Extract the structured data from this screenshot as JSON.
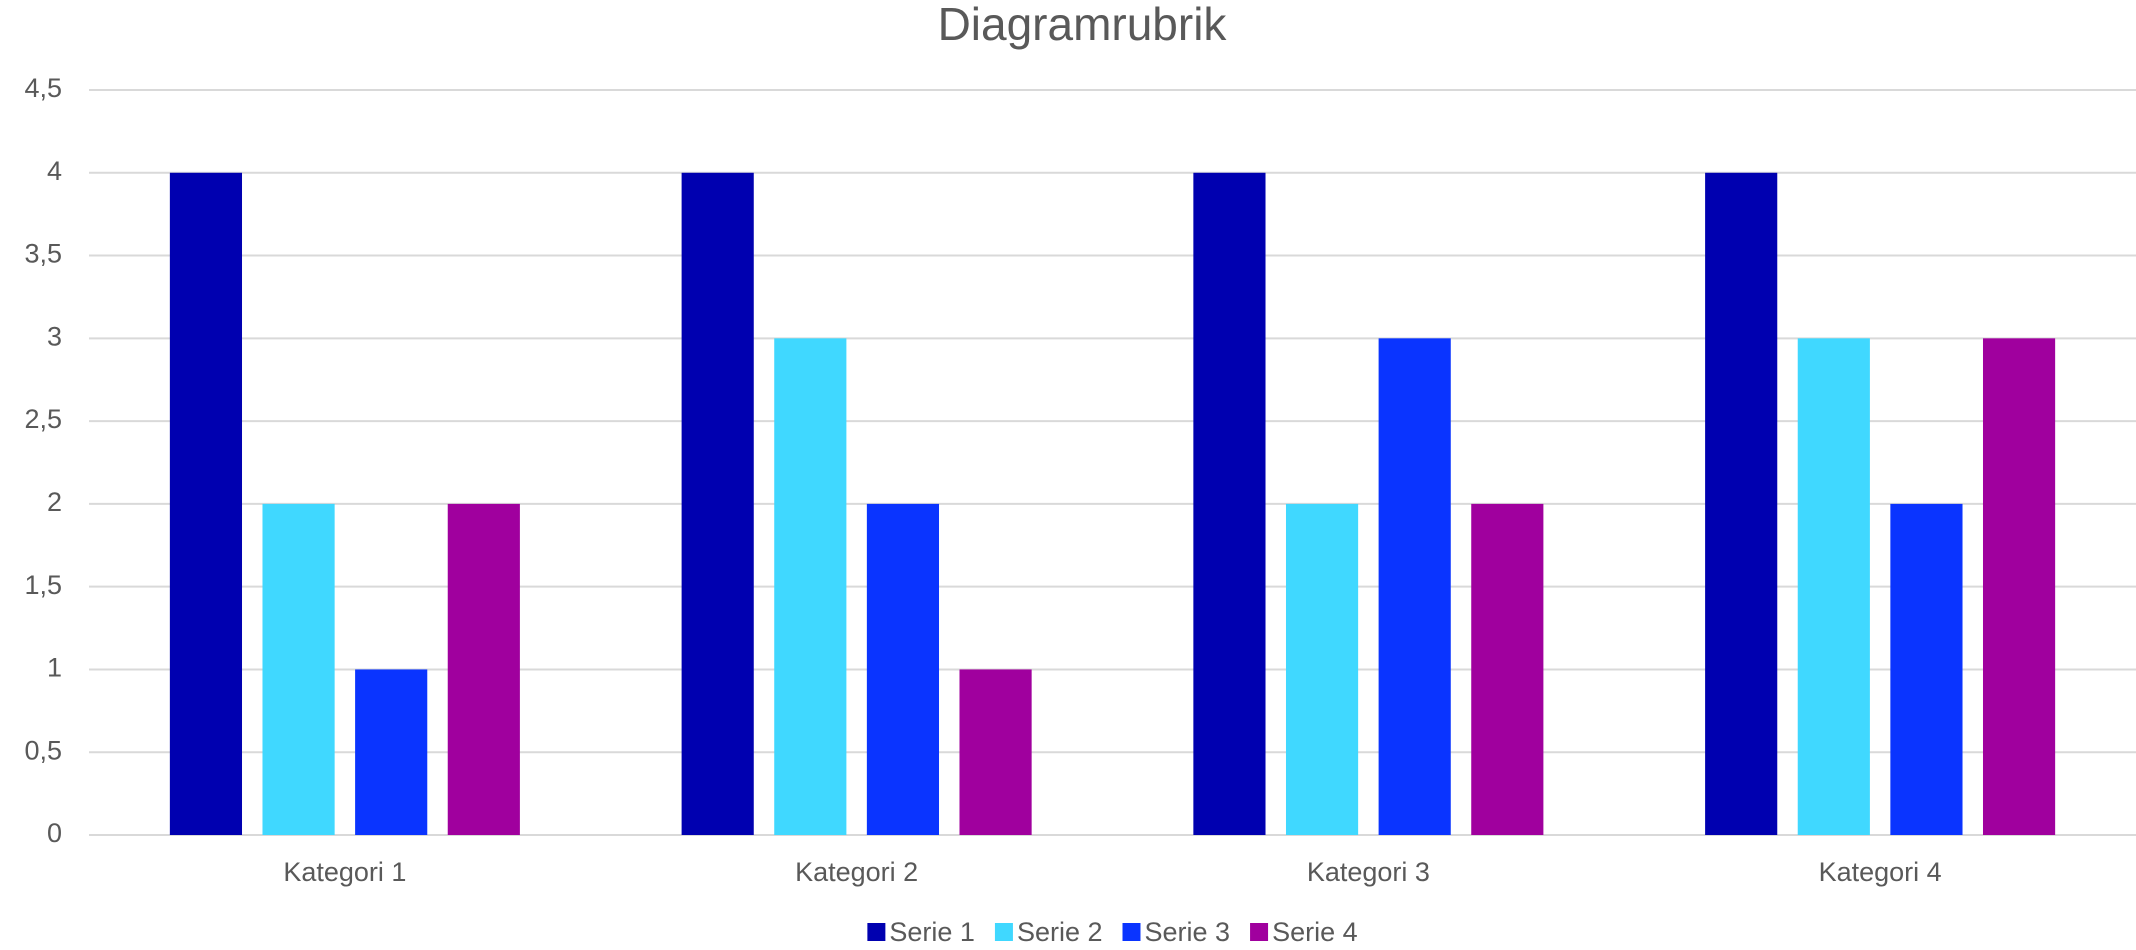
{
  "chart_data": {
    "type": "bar",
    "title": "Diagramrubrik",
    "categories": [
      "Kategori 1",
      "Kategori 2",
      "Kategori 3",
      "Kategori 4"
    ],
    "series": [
      {
        "name": "Serie 1",
        "color": "#0000b0",
        "values": [
          4,
          4,
          4,
          4
        ]
      },
      {
        "name": "Serie 2",
        "color": "#40d8ff",
        "values": [
          2,
          3,
          2,
          3
        ]
      },
      {
        "name": "Serie 3",
        "color": "#0a34ff",
        "values": [
          1,
          2,
          3,
          2
        ]
      },
      {
        "name": "Serie 4",
        "color": "#a0009e",
        "values": [
          2,
          1,
          2,
          3
        ]
      }
    ],
    "ylim": [
      0,
      4.5
    ],
    "yticks": [
      0,
      {
        "value": 0.5,
        "label": "0,5"
      },
      1,
      {
        "value": 1.5,
        "label": "1,5"
      },
      2,
      {
        "value": 2.5,
        "label": "2,5"
      },
      3,
      {
        "value": 3.5,
        "label": "3,5"
      },
      4,
      {
        "value": 4.5,
        "label": "4,5"
      }
    ],
    "grid": true,
    "legend": "bottom"
  }
}
